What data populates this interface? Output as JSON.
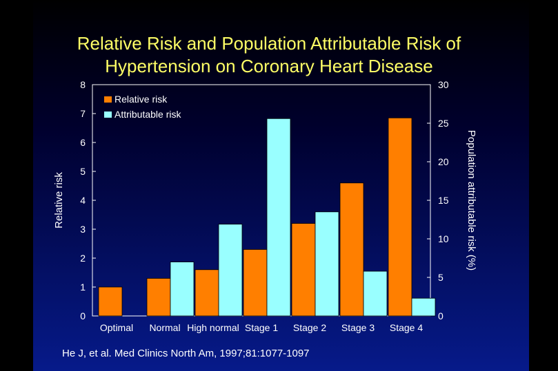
{
  "chart_data": {
    "type": "bar",
    "title_lines": [
      "Relative Risk and Population Attributable Risk of",
      "Hypertension on Coronary Heart Disease"
    ],
    "categories": [
      "Optimal",
      "Normal",
      "High normal",
      "Stage 1",
      "Stage 2",
      "Stage 3",
      "Stage 4"
    ],
    "series": [
      {
        "name": "Relative risk",
        "axis": "left",
        "color": "#ff7f00",
        "values": [
          1.0,
          1.3,
          1.6,
          2.3,
          3.2,
          4.6,
          6.85
        ]
      },
      {
        "name": "Attributable risk",
        "axis": "right",
        "color": "#99ffff",
        "values": [
          null,
          7.0,
          11.9,
          25.6,
          13.5,
          5.8,
          2.3
        ]
      }
    ],
    "y_left": {
      "label": "Relative risk",
      "lim": [
        0,
        8
      ],
      "ticks": [
        0,
        1,
        2,
        3,
        4,
        5,
        6,
        7,
        8
      ]
    },
    "y_right": {
      "label": "Population attributable risk (%)",
      "lim": [
        0,
        30
      ],
      "ticks": [
        0,
        5,
        10,
        15,
        20,
        25,
        30
      ]
    },
    "legend_position": "top-left",
    "grid": false,
    "background_colors": [
      "#000000",
      "#061a8a"
    ],
    "text_color": "#ffffff",
    "title_color": "#ffff66"
  },
  "citation": "He J, et al. Med Clinics North Am, 1997;81:1077-1097"
}
